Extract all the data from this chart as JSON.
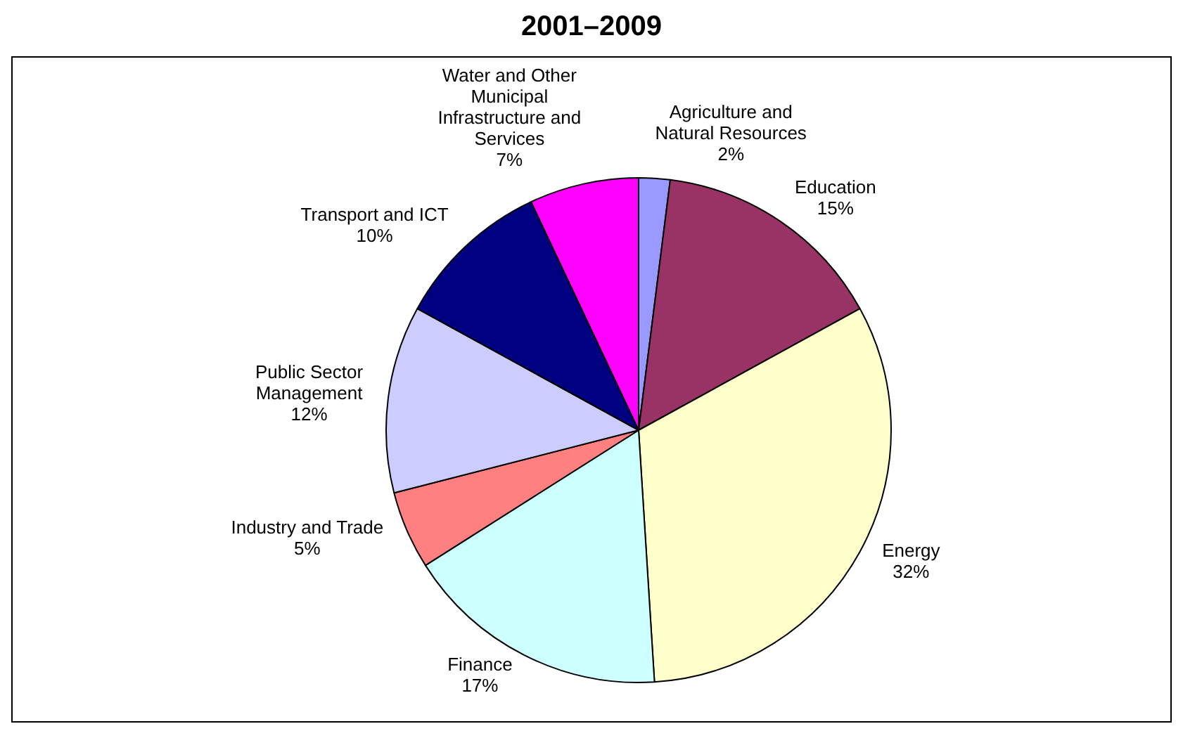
{
  "chart_data": {
    "type": "pie",
    "title": "2001–2009",
    "categories": [
      "Agriculture and Natural Resources",
      "Education",
      "Energy",
      "Finance",
      "Industry and Trade",
      "Public Sector Management",
      "Transport and ICT",
      "Water and Other Municipal Infrastructure and Services"
    ],
    "values": [
      2,
      15,
      32,
      17,
      5,
      12,
      10,
      7
    ],
    "value_labels": [
      "2%",
      "15%",
      "32%",
      "17%",
      "5%",
      "12%",
      "10%",
      "7%"
    ],
    "colors": [
      "#9999ff",
      "#993366",
      "#ffffcc",
      "#ccffff",
      "#ff8080",
      "#ccccff",
      "#000080",
      "#ff00ff"
    ],
    "legend": false
  }
}
